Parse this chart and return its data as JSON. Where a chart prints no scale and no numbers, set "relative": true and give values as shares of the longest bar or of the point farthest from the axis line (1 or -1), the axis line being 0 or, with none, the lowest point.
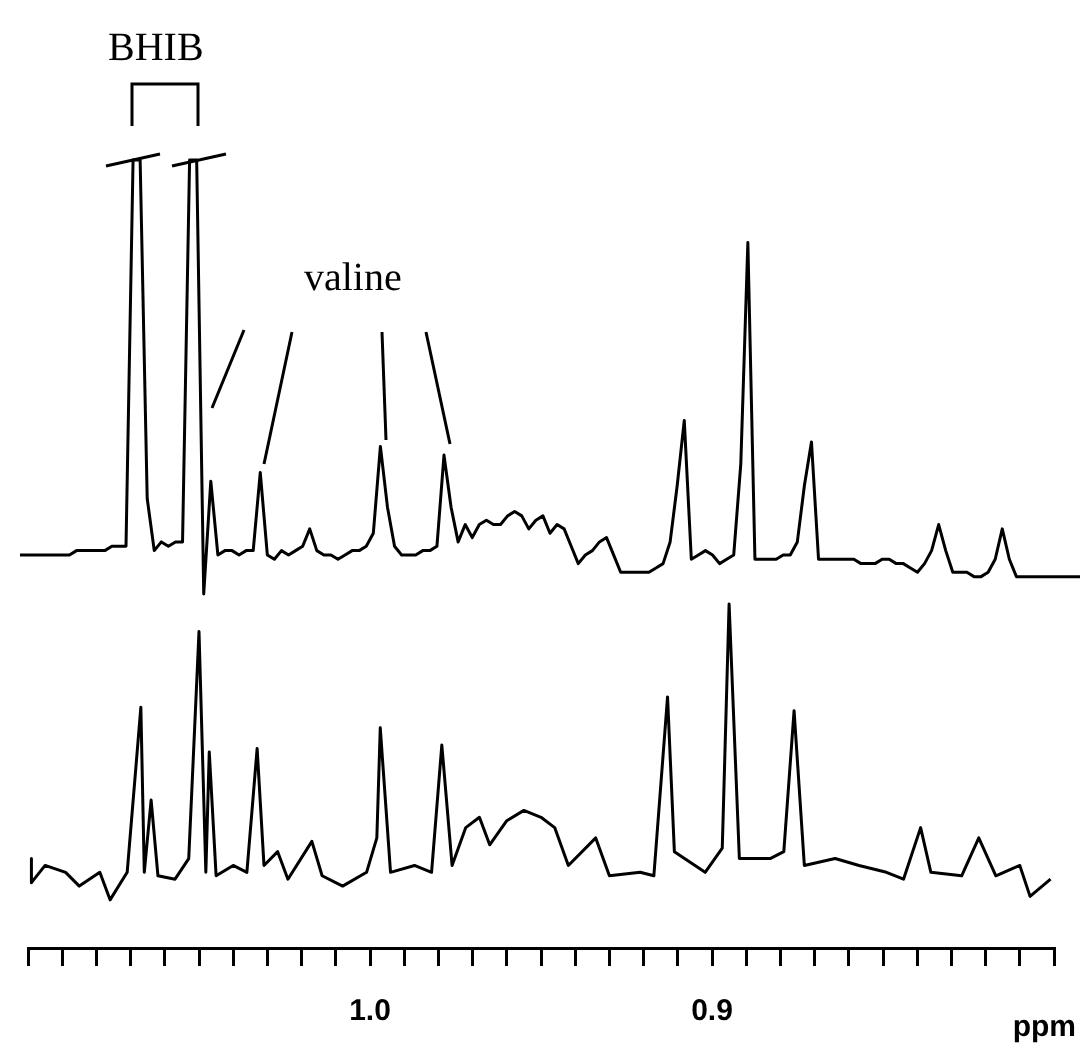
{
  "chart_data": [
    {
      "type": "line",
      "relative": true,
      "tick_labels": false,
      "annotations": [
        "BHIB",
        "valine"
      ],
      "categories": [
        null,
        null,
        null,
        null,
        null,
        null,
        null,
        null,
        null,
        null,
        null,
        null,
        null,
        null,
        null,
        null,
        null,
        null,
        null,
        null,
        null,
        null,
        null,
        null,
        null,
        null,
        null,
        null,
        null,
        null,
        null,
        null,
        null,
        null,
        null,
        null,
        null,
        null,
        null,
        null,
        null,
        null,
        null,
        null,
        null,
        null,
        null,
        null,
        null,
        null,
        null,
        null,
        null,
        null,
        null,
        null,
        null,
        null,
        null,
        null,
        null,
        null,
        null,
        null,
        null,
        null,
        null,
        null,
        null,
        null,
        null,
        null,
        null,
        null,
        null,
        null,
        null,
        null,
        null,
        null,
        null,
        null,
        null,
        null,
        null,
        null,
        null,
        null,
        null,
        null,
        null,
        null,
        null,
        null,
        null,
        null,
        null,
        null,
        null,
        null,
        null,
        null,
        null,
        null,
        null,
        null,
        null,
        null,
        null,
        null,
        null,
        null,
        null,
        null,
        null,
        null,
        null,
        null,
        null,
        null,
        null,
        null,
        null,
        null,
        null,
        null,
        null,
        null,
        null,
        null,
        null,
        null,
        null,
        null,
        null,
        null,
        null,
        null,
        null,
        null,
        null,
        null,
        null,
        null,
        null,
        null,
        null,
        null,
        null,
        null,
        null
      ],
      "series": [
        {
          "color": "#000000",
          "values": [
            0.09,
            0.09,
            0.09,
            0.09,
            0.09,
            0.09,
            0.09,
            0.09,
            0.1,
            0.1,
            0.1,
            0.1,
            0.1,
            0.11,
            0.11,
            0.11,
            1.0,
            1.0,
            0.22,
            0.1,
            0.12,
            0.11,
            0.12,
            0.12,
            1.0,
            1.0,
            0.0,
            0.26,
            0.09,
            0.1,
            0.1,
            0.09,
            0.1,
            0.1,
            0.28,
            0.09,
            0.08,
            0.1,
            0.09,
            0.1,
            0.11,
            0.15,
            0.1,
            0.09,
            0.09,
            0.08,
            0.09,
            0.1,
            0.1,
            0.11,
            0.14,
            0.34,
            0.2,
            0.11,
            0.09,
            0.09,
            0.09,
            0.1,
            0.1,
            0.11,
            0.32,
            0.2,
            0.12,
            0.16,
            0.13,
            0.16,
            0.17,
            0.16,
            0.16,
            0.18,
            0.19,
            0.18,
            0.15,
            0.17,
            0.18,
            0.14,
            0.16,
            0.15,
            0.11,
            0.07,
            0.09,
            0.1,
            0.12,
            0.13,
            0.09,
            0.05,
            0.05,
            0.05,
            0.05,
            0.05,
            0.06,
            0.07,
            0.12,
            0.25,
            0.4,
            0.08,
            0.09,
            0.1,
            0.09,
            0.07,
            0.08,
            0.09,
            0.3,
            0.81,
            0.08,
            0.08,
            0.08,
            0.08,
            0.09,
            0.09,
            0.12,
            0.25,
            0.35,
            0.08,
            0.08,
            0.08,
            0.08,
            0.08,
            0.08,
            0.07,
            0.07,
            0.07,
            0.08,
            0.08,
            0.07,
            0.07,
            0.06,
            0.05,
            0.07,
            0.1,
            0.16,
            0.1,
            0.05,
            0.05,
            0.05,
            0.04,
            0.04,
            0.05,
            0.08,
            0.15,
            0.08,
            0.04,
            0.04,
            0.04,
            0.04,
            0.04,
            0.04,
            0.04,
            0.04,
            0.04,
            0.04
          ]
        }
      ]
    },
    {
      "type": "line",
      "relative": true,
      "tick_labels": "x",
      "xlim": [
        1.1,
        0.8
      ],
      "xlabel": "ppm",
      "xticks": [
        {
          "value": 1.1,
          "label": null
        },
        {
          "value": 1.09,
          "label": null
        },
        {
          "value": 1.08,
          "label": null
        },
        {
          "value": 1.07,
          "label": null
        },
        {
          "value": 1.06,
          "label": null
        },
        {
          "value": 1.05,
          "label": null
        },
        {
          "value": 1.04,
          "label": null
        },
        {
          "value": 1.03,
          "label": null
        },
        {
          "value": 1.02,
          "label": null
        },
        {
          "value": 1.01,
          "label": null
        },
        {
          "value": 1.0,
          "label": "1.0"
        },
        {
          "value": 0.99,
          "label": null
        },
        {
          "value": 0.98,
          "label": null
        },
        {
          "value": 0.97,
          "label": null
        },
        {
          "value": 0.96,
          "label": null
        },
        {
          "value": 0.95,
          "label": null
        },
        {
          "value": 0.94,
          "label": null
        },
        {
          "value": 0.93,
          "label": null
        },
        {
          "value": 0.92,
          "label": null
        },
        {
          "value": 0.91,
          "label": null
        },
        {
          "value": 0.9,
          "label": "0.9"
        },
        {
          "value": 0.89,
          "label": null
        },
        {
          "value": 0.88,
          "label": null
        },
        {
          "value": 0.87,
          "label": null
        },
        {
          "value": 0.86,
          "label": null
        },
        {
          "value": 0.85,
          "label": null
        },
        {
          "value": 0.84,
          "label": null
        },
        {
          "value": 0.83,
          "label": null
        },
        {
          "value": 0.82,
          "label": null
        },
        {
          "value": 0.81,
          "label": null
        },
        {
          "value": 0.8,
          "label": null
        }
      ],
      "x": [
        1.099,
        1.099,
        1.095,
        1.089,
        1.085,
        1.079,
        1.076,
        1.071,
        1.067,
        1.066,
        1.064,
        1.062,
        1.057,
        1.053,
        1.05,
        1.048,
        1.047,
        1.045,
        1.04,
        1.036,
        1.033,
        1.031,
        1.027,
        1.024,
        1.017,
        1.014,
        1.008,
        1.001,
        0.998,
        0.997,
        0.994,
        0.987,
        0.982,
        0.979,
        0.976,
        0.972,
        0.968,
        0.965,
        0.96,
        0.955,
        0.95,
        0.946,
        0.942,
        0.934,
        0.93,
        0.921,
        0.917,
        0.913,
        0.911,
        0.902,
        0.897,
        0.895,
        0.892,
        0.883,
        0.879,
        0.876,
        0.873,
        0.864,
        0.857,
        0.849,
        0.844,
        0.839,
        0.836,
        0.827,
        0.822,
        0.817,
        0.81,
        0.807,
        0.801
      ],
      "series": [
        {
          "color": "#000000",
          "values": [
            0.26,
            0.19,
            0.24,
            0.22,
            0.18,
            0.22,
            0.14,
            0.22,
            0.7,
            0.22,
            0.43,
            0.21,
            0.2,
            0.26,
            0.92,
            0.22,
            0.57,
            0.21,
            0.24,
            0.22,
            0.58,
            0.24,
            0.28,
            0.2,
            0.31,
            0.21,
            0.18,
            0.22,
            0.32,
            0.64,
            0.22,
            0.24,
            0.22,
            0.59,
            0.24,
            0.35,
            0.38,
            0.3,
            0.37,
            0.4,
            0.38,
            0.35,
            0.24,
            0.32,
            0.21,
            0.22,
            0.21,
            0.73,
            0.28,
            0.22,
            0.29,
            1.0,
            0.26,
            0.26,
            0.28,
            0.69,
            0.24,
            0.26,
            0.24,
            0.22,
            0.2,
            0.35,
            0.22,
            0.21,
            0.32,
            0.21,
            0.24,
            0.15,
            0.2
          ]
        }
      ]
    }
  ]
}
